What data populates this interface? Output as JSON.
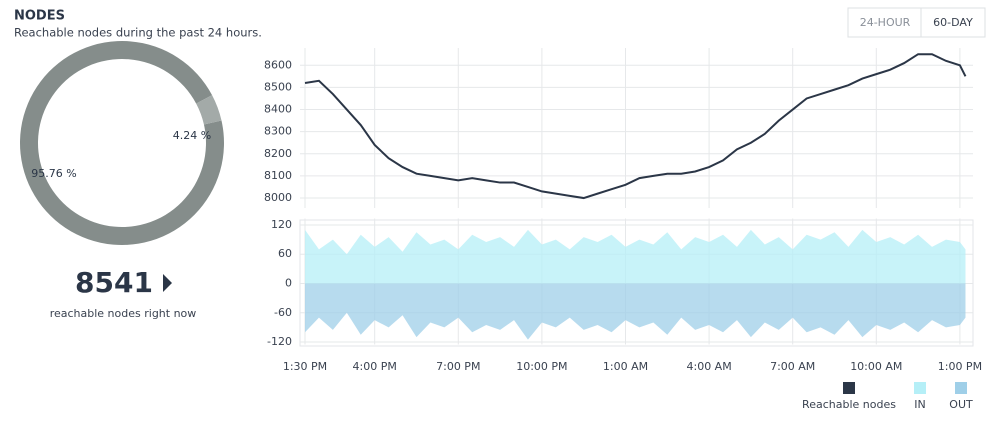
{
  "header": {
    "title": "NODES",
    "subtitle": "Reachable nodes during the past 24 hours."
  },
  "buttons": [
    "24-HOUR",
    "60-DAY"
  ],
  "summary": {
    "value": 8541,
    "caption": "reachable nodes right now"
  },
  "chart_data": [
    {
      "type": "pie",
      "values": [
        95.76,
        4.24
      ],
      "value_labels": [
        "95.76 %",
        "4.24 %"
      ],
      "colors": [
        "#858d8b",
        "#a3aaa8"
      ]
    },
    {
      "type": "line",
      "x": [
        13.5,
        14,
        14.5,
        15,
        15.5,
        16,
        16.5,
        17,
        17.5,
        18,
        18.5,
        19,
        19.5,
        20,
        20.5,
        21,
        21.5,
        22,
        22.5,
        23,
        23.5,
        24,
        24.5,
        25,
        25.5,
        26,
        26.5,
        27,
        27.5,
        28,
        28.5,
        29,
        29.5,
        30,
        30.5,
        31,
        31.5,
        32,
        32.5,
        33,
        33.5,
        34,
        34.5,
        35,
        35.5,
        36,
        36.5,
        37,
        37.2
      ],
      "series": [
        {
          "name": "Reachable nodes",
          "color": "#2b3647",
          "values": [
            8520,
            8530,
            8470,
            8400,
            8330,
            8240,
            8180,
            8140,
            8110,
            8100,
            8090,
            8080,
            8090,
            8080,
            8070,
            8070,
            8050,
            8030,
            8020,
            8010,
            8000,
            8020,
            8040,
            8060,
            8090,
            8100,
            8110,
            8110,
            8120,
            8140,
            8170,
            8220,
            8250,
            8290,
            8350,
            8400,
            8450,
            8470,
            8490,
            8510,
            8540,
            8560,
            8580,
            8610,
            8650,
            8650,
            8620,
            8600,
            8550
          ]
        }
      ],
      "xlim": [
        13.32,
        37.47
      ],
      "xticks": [
        {
          "value": 13.5,
          "label": "1:30 PM"
        },
        {
          "value": 16,
          "label": "4:00 PM"
        },
        {
          "value": 19,
          "label": "7:00 PM"
        },
        {
          "value": 22,
          "label": "10:00 PM"
        },
        {
          "value": 25,
          "label": "1:00 AM"
        },
        {
          "value": 28,
          "label": "4:00 AM"
        },
        {
          "value": 31,
          "label": "7:00 AM"
        },
        {
          "value": 34,
          "label": "10:00 AM"
        },
        {
          "value": 37,
          "label": "1:00 PM"
        }
      ],
      "ylim": [
        7955,
        8660
      ],
      "yticks": [
        8000,
        8100,
        8200,
        8300,
        8400,
        8500,
        8600
      ],
      "grid": true
    },
    {
      "type": "area",
      "x": [
        13.5,
        14,
        14.5,
        15,
        15.5,
        16,
        16.5,
        17,
        17.5,
        18,
        18.5,
        19,
        19.5,
        20,
        20.5,
        21,
        21.5,
        22,
        22.5,
        23,
        23.5,
        24,
        24.5,
        25,
        25.5,
        26,
        26.5,
        27,
        27.5,
        28,
        28.5,
        29,
        29.5,
        30,
        30.5,
        31,
        31.5,
        32,
        32.5,
        33,
        33.5,
        34,
        34.5,
        35,
        35.5,
        36,
        36.5,
        37,
        37.2
      ],
      "series": [
        {
          "name": "IN",
          "color": "#b5eff7",
          "values": [
            110,
            70,
            90,
            60,
            100,
            75,
            95,
            65,
            105,
            80,
            90,
            70,
            100,
            85,
            95,
            75,
            110,
            80,
            90,
            70,
            95,
            85,
            100,
            75,
            90,
            80,
            105,
            70,
            95,
            85,
            100,
            75,
            110,
            80,
            95,
            70,
            100,
            90,
            105,
            75,
            110,
            85,
            95,
            80,
            100,
            75,
            90,
            85,
            70
          ]
        },
        {
          "name": "OUT",
          "color": "#9fcfe8",
          "values": [
            -100,
            -70,
            -95,
            -60,
            -105,
            -75,
            -90,
            -65,
            -110,
            -80,
            -90,
            -70,
            -100,
            -85,
            -95,
            -75,
            -115,
            -80,
            -90,
            -70,
            -95,
            -85,
            -100,
            -75,
            -90,
            -80,
            -105,
            -70,
            -95,
            -85,
            -100,
            -75,
            -110,
            -80,
            -95,
            -70,
            -100,
            -90,
            -105,
            -75,
            -110,
            -85,
            -95,
            -80,
            -100,
            -75,
            -90,
            -85,
            -70
          ]
        }
      ],
      "xlim": [
        13.32,
        37.47
      ],
      "ylim": [
        -125,
        125
      ],
      "yticks": [
        -120,
        -60,
        0,
        60,
        120
      ],
      "grid": true
    }
  ]
}
